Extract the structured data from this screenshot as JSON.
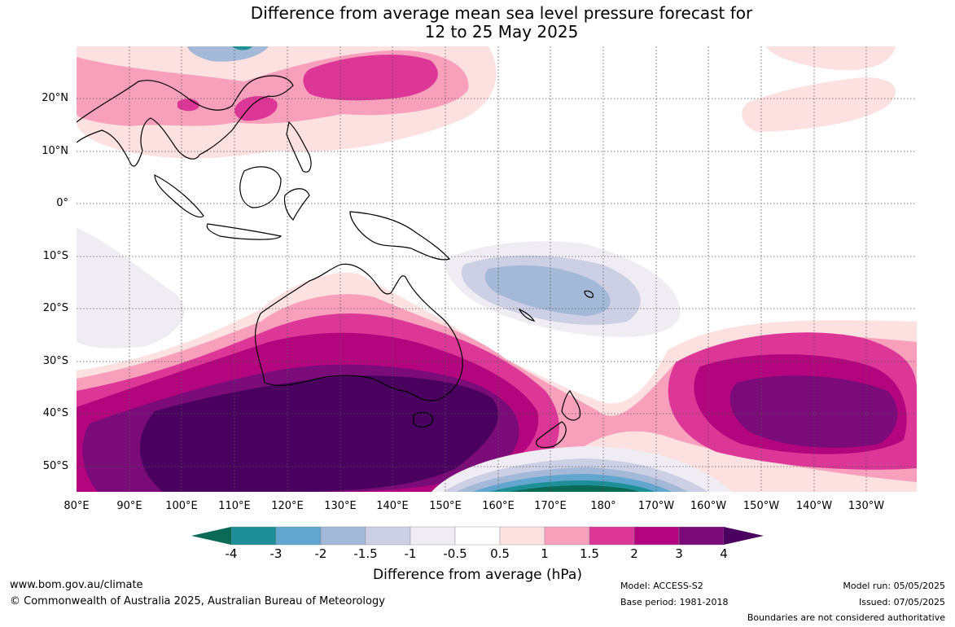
{
  "title_line1": "Difference from average mean sea level pressure forecast for",
  "title_line2": "12 to 25 May 2025",
  "lat_labels": [
    "20°N",
    "10°N",
    "0°",
    "10°S",
    "20°S",
    "30°S",
    "40°S",
    "50°S"
  ],
  "lon_labels": [
    "80°E",
    "90°E",
    "100°E",
    "110°E",
    "120°E",
    "130°E",
    "140°E",
    "150°E",
    "160°E",
    "170°E",
    "180°",
    "170°W",
    "160°W",
    "150°W",
    "140°W",
    "130°W"
  ],
  "colorbar": {
    "ticks": [
      "-4",
      "-3",
      "-2",
      "-1.5",
      "-1",
      "-0.5",
      "0.5",
      "1",
      "1.5",
      "2",
      "3",
      "4"
    ],
    "colors": [
      "#0a6a55",
      "#1e8f96",
      "#62a5cf",
      "#a4b8d8",
      "#cdcfe4",
      "#efecf3",
      "#ffffff",
      "#fde0e0",
      "#f89fbb",
      "#dc3797",
      "#b3057e",
      "#7b0b78",
      "#4a005f"
    ],
    "title": "Difference from average (hPa)"
  },
  "footer": {
    "website": "www.bom.gov.au/climate",
    "copyright": "© Commonwealth of Australia 2025, Australian Bureau of Meteorology",
    "model": "Model: ACCESS-S2",
    "base_period": "Base period: 1981-2018",
    "model_run": "Model run: 05/05/2025",
    "issued": "Issued: 07/05/2025",
    "disclaimer": "Boundaries are not considered authoritative"
  }
}
